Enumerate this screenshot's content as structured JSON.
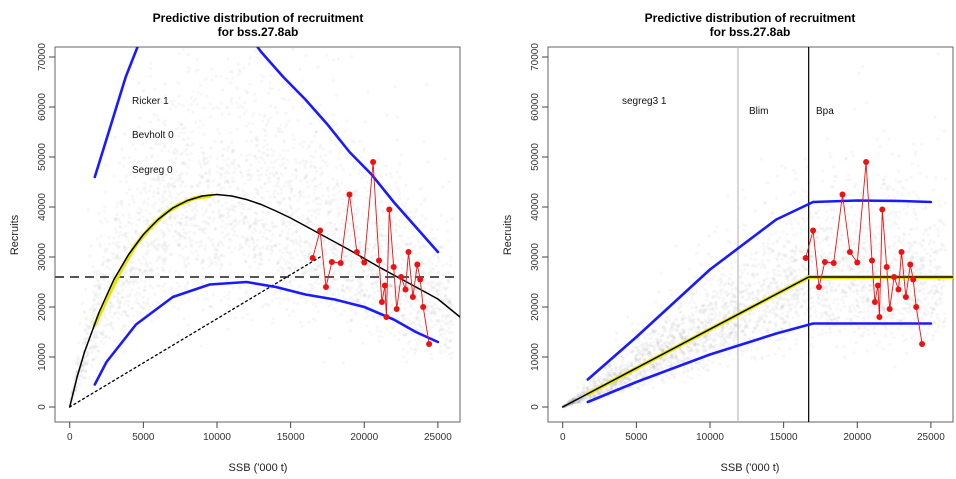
{
  "chart_data": [
    {
      "type": "line",
      "title": "Predictive distribution of recruitment",
      "subtitle": "for bss.27.8ab",
      "xlabel": "SSB ('000 t)",
      "ylabel": "Recruits",
      "xlim": [
        -1000,
        26500
      ],
      "ylim": [
        -3000,
        72000
      ],
      "xticks": [
        0,
        5000,
        10000,
        15000,
        20000,
        25000
      ],
      "yticks": [
        0,
        10000,
        20000,
        30000,
        40000,
        50000,
        60000,
        70000
      ],
      "annotations": [
        "Ricker 1",
        "Bevholt 0",
        "Segreg 0"
      ],
      "hline": 26000,
      "series": [
        {
          "role": "fit",
          "color": "#000000",
          "x": [
            0,
            500,
            1000,
            2000,
            3000,
            4000,
            5000,
            6000,
            7000,
            8000,
            9000,
            10000,
            11000,
            12000,
            13000,
            14000,
            15000,
            16000,
            17000,
            18000,
            19000,
            20000,
            21000,
            22000,
            23000,
            24000,
            25000,
            26500
          ],
          "y": [
            0,
            6000,
            11000,
            19000,
            25500,
            30500,
            34500,
            37500,
            39800,
            41300,
            42200,
            42500,
            42200,
            41500,
            40500,
            39200,
            37800,
            36200,
            34600,
            33000,
            31400,
            29700,
            28000,
            26400,
            24800,
            23200,
            21600,
            18000
          ]
        },
        {
          "role": "fit-highlight",
          "color": "#e6e600",
          "x": [
            1700,
            2500,
            3500,
            4500,
            5500,
            6500,
            7500,
            8500,
            9500
          ],
          "y": [
            16500,
            21500,
            27500,
            32500,
            36000,
            38800,
            40600,
            41800,
            42200
          ]
        },
        {
          "role": "upper",
          "color": "#1a1aff",
          "x": [
            1700,
            2700,
            3800,
            5000
          ],
          "y": [
            46000,
            55500,
            66000,
            75000
          ]
        },
        {
          "role": "upper",
          "color": "#1a1aff",
          "x": [
            11500,
            13000,
            14500,
            16000,
            17500,
            19000,
            20500,
            22000,
            23500,
            25000
          ],
          "y": [
            77000,
            71000,
            66000,
            61500,
            56500,
            51000,
            46500,
            41000,
            36000,
            31000
          ]
        },
        {
          "role": "lower",
          "color": "#1a1aff",
          "x": [
            1700,
            2500,
            4500,
            7000,
            9500,
            12000,
            14000,
            16000,
            18000,
            20000,
            22000,
            23500,
            25000
          ],
          "y": [
            4500,
            9000,
            16500,
            22000,
            24500,
            25000,
            24000,
            22500,
            21500,
            20000,
            17500,
            15000,
            13000
          ]
        },
        {
          "role": "replacement",
          "color": "#000000",
          "x": [
            0,
            17000
          ],
          "y": [
            0,
            30000
          ]
        },
        {
          "role": "observed",
          "color": "#ee1111",
          "x": [
            16500,
            17000,
            17400,
            17800,
            18400,
            19000,
            19500,
            20000,
            20600,
            21000,
            21200,
            21400,
            21500,
            21700,
            22000,
            22200,
            22500,
            22800,
            23000,
            23300,
            23600,
            23800,
            24000,
            24400
          ],
          "y": [
            29800,
            35300,
            24000,
            29000,
            28800,
            42500,
            31000,
            28900,
            49000,
            29300,
            21000,
            24300,
            18000,
            39500,
            28000,
            19600,
            26000,
            23500,
            31000,
            22000,
            28500,
            25500,
            20000,
            12600
          ]
        }
      ]
    },
    {
      "type": "line",
      "title": "Predictive distribution of recruitment",
      "subtitle": "for bss.27.8ab",
      "xlabel": "SSB ('000 t)",
      "ylabel": "Recruits",
      "xlim": [
        -1000,
        26500
      ],
      "ylim": [
        -3000,
        72000
      ],
      "xticks": [
        0,
        5000,
        10000,
        15000,
        20000,
        25000
      ],
      "yticks": [
        0,
        10000,
        20000,
        30000,
        40000,
        50000,
        60000,
        70000
      ],
      "annotations": [
        "segreg3 1"
      ],
      "vlines": [
        {
          "label": "Blim",
          "x": 11900,
          "color": "#bbbbbb"
        },
        {
          "label": "Bpa",
          "x": 16700,
          "color": "#000000"
        }
      ],
      "series": [
        {
          "role": "fit",
          "color": "#000000",
          "x": [
            0,
            16700,
            26500
          ],
          "y": [
            0,
            26000,
            26000
          ]
        },
        {
          "role": "fit-highlight",
          "color": "#e6e600",
          "x": [
            1700,
            16700,
            26500
          ],
          "y": [
            2600,
            26000,
            26000
          ]
        },
        {
          "role": "upper",
          "color": "#1a1aff",
          "x": [
            1700,
            5000,
            10000,
            14500,
            17000,
            20000,
            23000,
            25000
          ],
          "y": [
            5500,
            14000,
            27500,
            37500,
            41000,
            41300,
            41200,
            41000
          ]
        },
        {
          "role": "lower",
          "color": "#1a1aff",
          "x": [
            1700,
            5000,
            10000,
            14500,
            17000,
            20000,
            23000,
            25000
          ],
          "y": [
            1000,
            5000,
            10500,
            14700,
            16700,
            16700,
            16700,
            16700
          ]
        },
        {
          "role": "observed",
          "color": "#ee1111",
          "x": [
            16500,
            17000,
            17400,
            17800,
            18400,
            19000,
            19500,
            20000,
            20600,
            21000,
            21200,
            21400,
            21500,
            21700,
            22000,
            22200,
            22500,
            22800,
            23000,
            23300,
            23600,
            23800,
            24000,
            24400
          ],
          "y": [
            29800,
            35300,
            24000,
            29000,
            28800,
            42500,
            31000,
            28900,
            49000,
            29300,
            21000,
            24300,
            18000,
            39500,
            28000,
            19600,
            26000,
            23500,
            31000,
            22000,
            28500,
            25500,
            20000,
            12600
          ]
        }
      ]
    }
  ]
}
